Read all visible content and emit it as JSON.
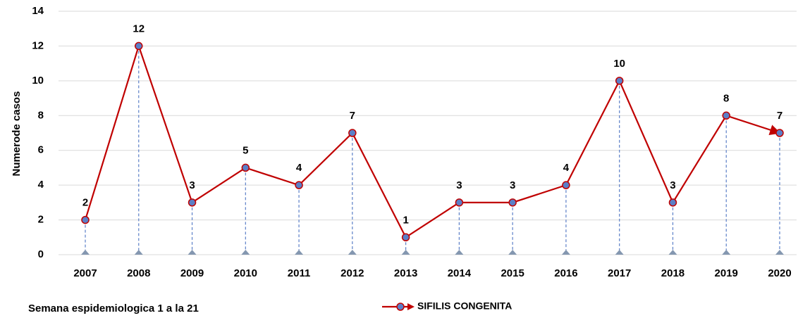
{
  "chart_data": {
    "type": "line",
    "categories": [
      "2007",
      "2008",
      "2009",
      "2010",
      "2011",
      "2012",
      "2013",
      "2014",
      "2015",
      "2016",
      "2017",
      "2018",
      "2019",
      "2020"
    ],
    "series": [
      {
        "name": "SIFILIS CONGENITA",
        "color": "#c00000",
        "marker_color": "#5b7fc7",
        "values": [
          2,
          12,
          3,
          5,
          4,
          7,
          1,
          3,
          3,
          4,
          10,
          3,
          8,
          7
        ]
      }
    ],
    "ylabel": "Numerode casos",
    "note": "Semana espidemiologica 1 a la 21",
    "ylim": [
      0,
      14
    ],
    "yticks": [
      0,
      2,
      4,
      6,
      8,
      10,
      12,
      14
    ],
    "grid": true,
    "data_labels": true,
    "drop_lines": true
  }
}
